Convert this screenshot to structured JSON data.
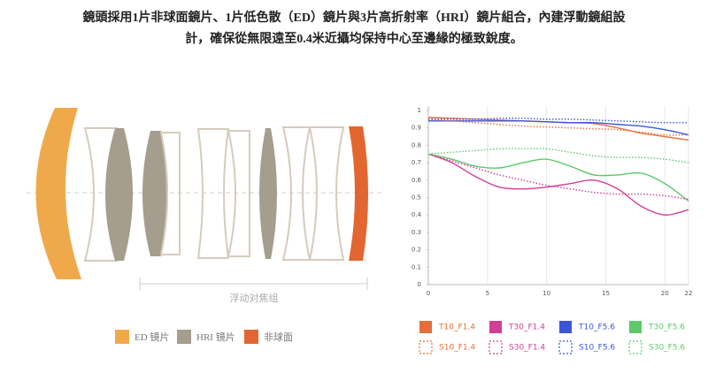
{
  "description": [
    "鏡頭採用1片非球面鏡片、1片低色散（ED）鏡片與3片高折射率（HRI）鏡片組合，內建浮動鏡組設",
    "計，確保從無限遠至0.4米近攝均保持中心至邊緣的極致銳度。"
  ],
  "lens_diagram": {
    "range_label": "浮动对焦组",
    "legend": [
      {
        "label": "ED 镜片",
        "color": "#f0a94a"
      },
      {
        "label": "HRI 镜片",
        "color": "#a59d8d"
      },
      {
        "label": "非球面",
        "color": "#e2662f"
      }
    ]
  },
  "chart_data": {
    "type": "line",
    "x": [
      0,
      2,
      4,
      6,
      8,
      10,
      12,
      14,
      16,
      18,
      20,
      22
    ],
    "xlim": [
      0,
      22
    ],
    "xticks": [
      0,
      5,
      10,
      15,
      20,
      22
    ],
    "ylim": [
      0,
      1
    ],
    "yticks": [
      0,
      0.1,
      0.2,
      0.3,
      0.4,
      0.5,
      0.6,
      0.7,
      0.8,
      0.9,
      1
    ],
    "grid": "x",
    "series": [
      {
        "name": "T10_F1.4",
        "color": "#e2703a",
        "line_style": "solid",
        "values": [
          0.96,
          0.955,
          0.95,
          0.945,
          0.94,
          0.935,
          0.93,
          0.925,
          0.9,
          0.87,
          0.85,
          0.83
        ]
      },
      {
        "name": "T30_F1.4",
        "color": "#d13f94",
        "line_style": "solid",
        "values": [
          0.75,
          0.7,
          0.62,
          0.56,
          0.55,
          0.56,
          0.58,
          0.6,
          0.55,
          0.45,
          0.4,
          0.43
        ]
      },
      {
        "name": "T10_F5.6",
        "color": "#3b57d6",
        "line_style": "solid",
        "values": [
          0.94,
          0.94,
          0.94,
          0.94,
          0.94,
          0.935,
          0.93,
          0.93,
          0.92,
          0.91,
          0.89,
          0.86
        ]
      },
      {
        "name": "T30_F5.6",
        "color": "#5cc96a",
        "line_style": "solid",
        "values": [
          0.75,
          0.72,
          0.68,
          0.67,
          0.7,
          0.72,
          0.68,
          0.63,
          0.63,
          0.64,
          0.58,
          0.48
        ]
      },
      {
        "name": "S10_F1.4",
        "color": "#e2703a",
        "line_style": "dotted",
        "values": [
          0.95,
          0.94,
          0.93,
          0.92,
          0.91,
          0.905,
          0.9,
          0.895,
          0.89,
          0.875,
          0.86,
          0.86
        ]
      },
      {
        "name": "S30_F1.4",
        "color": "#d13f94",
        "line_style": "dotted",
        "values": [
          0.75,
          0.71,
          0.67,
          0.63,
          0.6,
          0.57,
          0.55,
          0.53,
          0.52,
          0.52,
          0.51,
          0.49
        ]
      },
      {
        "name": "S10_F5.6",
        "color": "#3b57d6",
        "line_style": "dotted",
        "values": [
          0.95,
          0.95,
          0.95,
          0.955,
          0.955,
          0.95,
          0.95,
          0.945,
          0.94,
          0.935,
          0.93,
          0.93
        ]
      },
      {
        "name": "S30_F5.6",
        "color": "#5cc96a",
        "line_style": "dotted",
        "values": [
          0.75,
          0.76,
          0.77,
          0.78,
          0.78,
          0.78,
          0.76,
          0.74,
          0.73,
          0.73,
          0.72,
          0.7
        ]
      }
    ]
  }
}
